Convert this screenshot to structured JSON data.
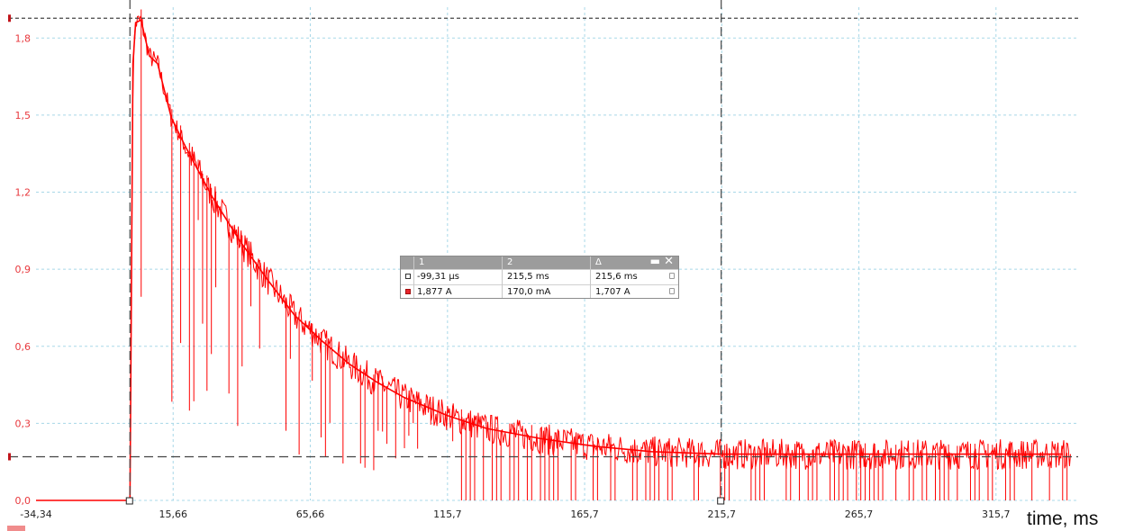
{
  "chart_data": {
    "type": "line",
    "title": "",
    "xlabel": "time, ms",
    "ylabel": "",
    "x_ticks": [
      "-34,34",
      "15,66",
      "65,66",
      "115,7",
      "165,7",
      "215,7",
      "265,7",
      "315,7"
    ],
    "y_ticks": [
      "0,0",
      "0,3",
      "0,6",
      "0,9",
      "1,2",
      "1,5",
      "1,8"
    ],
    "xlim": [
      -34.34,
      345
    ],
    "ylim": [
      0.0,
      1.92
    ],
    "grid": true,
    "series": [
      {
        "color": "#ff0000",
        "x": [
          -34.34,
          -5,
          -0.1,
          1,
          2,
          4,
          5,
          7,
          10,
          15,
          20,
          25,
          30,
          40,
          50,
          60,
          70,
          80,
          90,
          100,
          115.7,
          130,
          150,
          170,
          190,
          215.7,
          240,
          265.7,
          290,
          315.7,
          340
        ],
        "y": [
          0.0,
          0.0,
          0.0,
          1.7,
          1.86,
          1.87,
          1.82,
          1.73,
          1.7,
          1.49,
          1.38,
          1.28,
          1.18,
          1.01,
          0.86,
          0.72,
          0.62,
          0.53,
          0.46,
          0.4,
          0.33,
          0.28,
          0.24,
          0.21,
          0.19,
          0.18,
          0.18,
          0.18,
          0.18,
          0.18,
          0.18
        ]
      }
    ],
    "cursors": [
      {
        "id": "1",
        "x": -0.09931,
        "y": 1.877
      },
      {
        "id": "2",
        "x": 215.5,
        "y": 0.17
      }
    ]
  },
  "colors": {
    "trace": "#ff0000",
    "axis_text": "#e8383d",
    "grid": "#a8d8e8",
    "cursor_line": "#444444",
    "marker": "#c0141a"
  },
  "measurement_panel": {
    "headers": [
      "1",
      "2",
      "Δ"
    ],
    "rows": [
      {
        "swatch": "white",
        "c1": "-99,31 µs",
        "c2": "215,5 ms",
        "delta": "215,6 ms"
      },
      {
        "swatch": "red",
        "c1": "1,877 A",
        "c2": "170,0 mA",
        "delta": "1,707 A"
      }
    ],
    "minimize_icon": "minimize-icon",
    "close_icon": "close-icon"
  }
}
